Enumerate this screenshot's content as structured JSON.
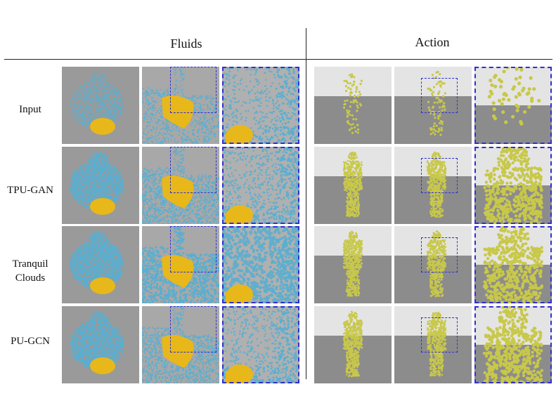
{
  "figure": {
    "column_groups": [
      {
        "id": "fluids",
        "label": "Fluids"
      },
      {
        "id": "action",
        "label": "Action"
      }
    ],
    "row_labels": [
      "Input",
      "TPU-GAN",
      "Tranquil\nClouds",
      "PU-GCN"
    ],
    "colors": {
      "fluid_particles": "#5aaed0",
      "fluid_object": "#e8b81a",
      "fluid_background": "#9a9a9a",
      "action_particles": "#c8c84a",
      "action_sky": "#e4e4e4",
      "action_floor": "#8c8c8c",
      "zoom_box": "#2f2fd0"
    }
  }
}
